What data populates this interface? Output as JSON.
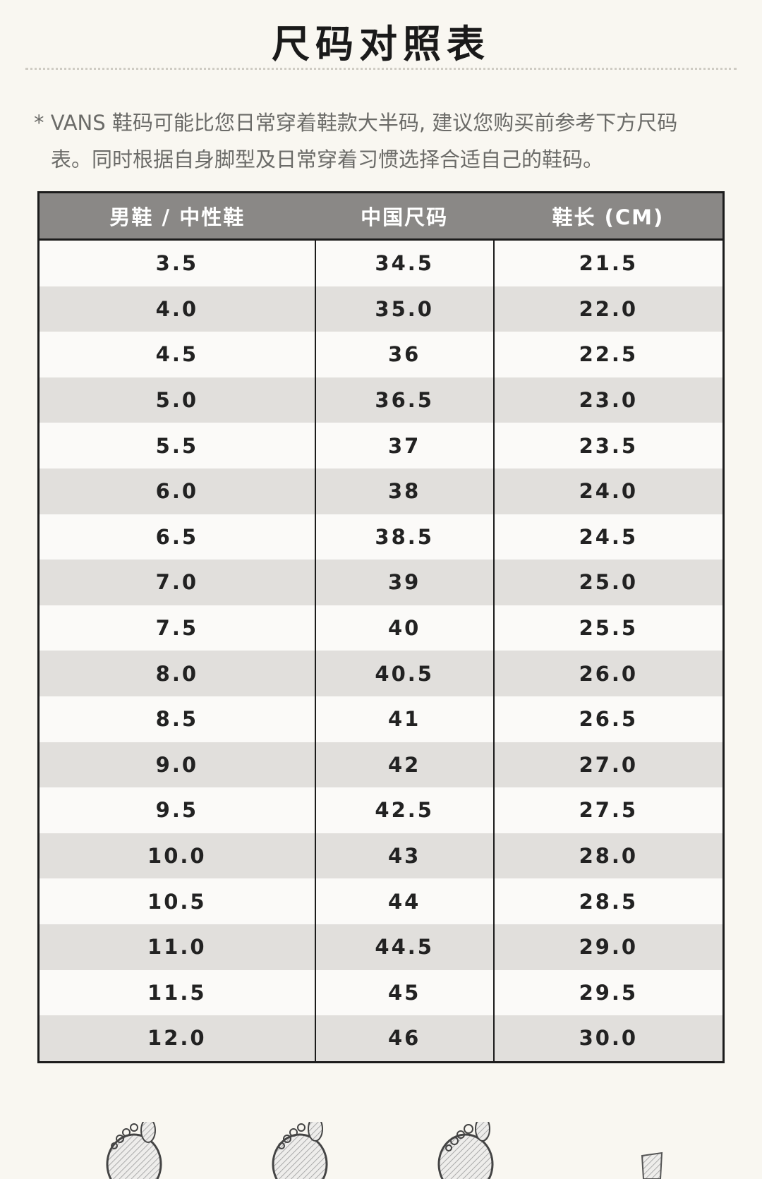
{
  "title": "尺码对照表",
  "note_line1": "* VANS 鞋码可能比您日常穿着鞋款大半码, 建议您购买前参考下方尺码",
  "note_line2": "表。同时根据自身脚型及日常穿着习惯选择合适自己的鞋码。",
  "table": {
    "headers": [
      "男鞋 / 中性鞋",
      "中国尺码",
      "鞋长 (CM)"
    ],
    "rows": [
      [
        "3.5",
        "34.5",
        "21.5"
      ],
      [
        "4.0",
        "35.0",
        "22.0"
      ],
      [
        "4.5",
        "36",
        "22.5"
      ],
      [
        "5.0",
        "36.5",
        "23.0"
      ],
      [
        "5.5",
        "37",
        "23.5"
      ],
      [
        "6.0",
        "38",
        "24.0"
      ],
      [
        "6.5",
        "38.5",
        "24.5"
      ],
      [
        "7.0",
        "39",
        "25.0"
      ],
      [
        "7.5",
        "40",
        "25.5"
      ],
      [
        "8.0",
        "40.5",
        "26.0"
      ],
      [
        "8.5",
        "41",
        "26.5"
      ],
      [
        "9.0",
        "42",
        "27.0"
      ],
      [
        "9.5",
        "42.5",
        "27.5"
      ],
      [
        "10.0",
        "43",
        "28.0"
      ],
      [
        "10.5",
        "44",
        "28.5"
      ],
      [
        "11.0",
        "44.5",
        "29.0"
      ],
      [
        "11.5",
        "45",
        "29.5"
      ],
      [
        "12.0",
        "46",
        "30.0"
      ]
    ]
  }
}
